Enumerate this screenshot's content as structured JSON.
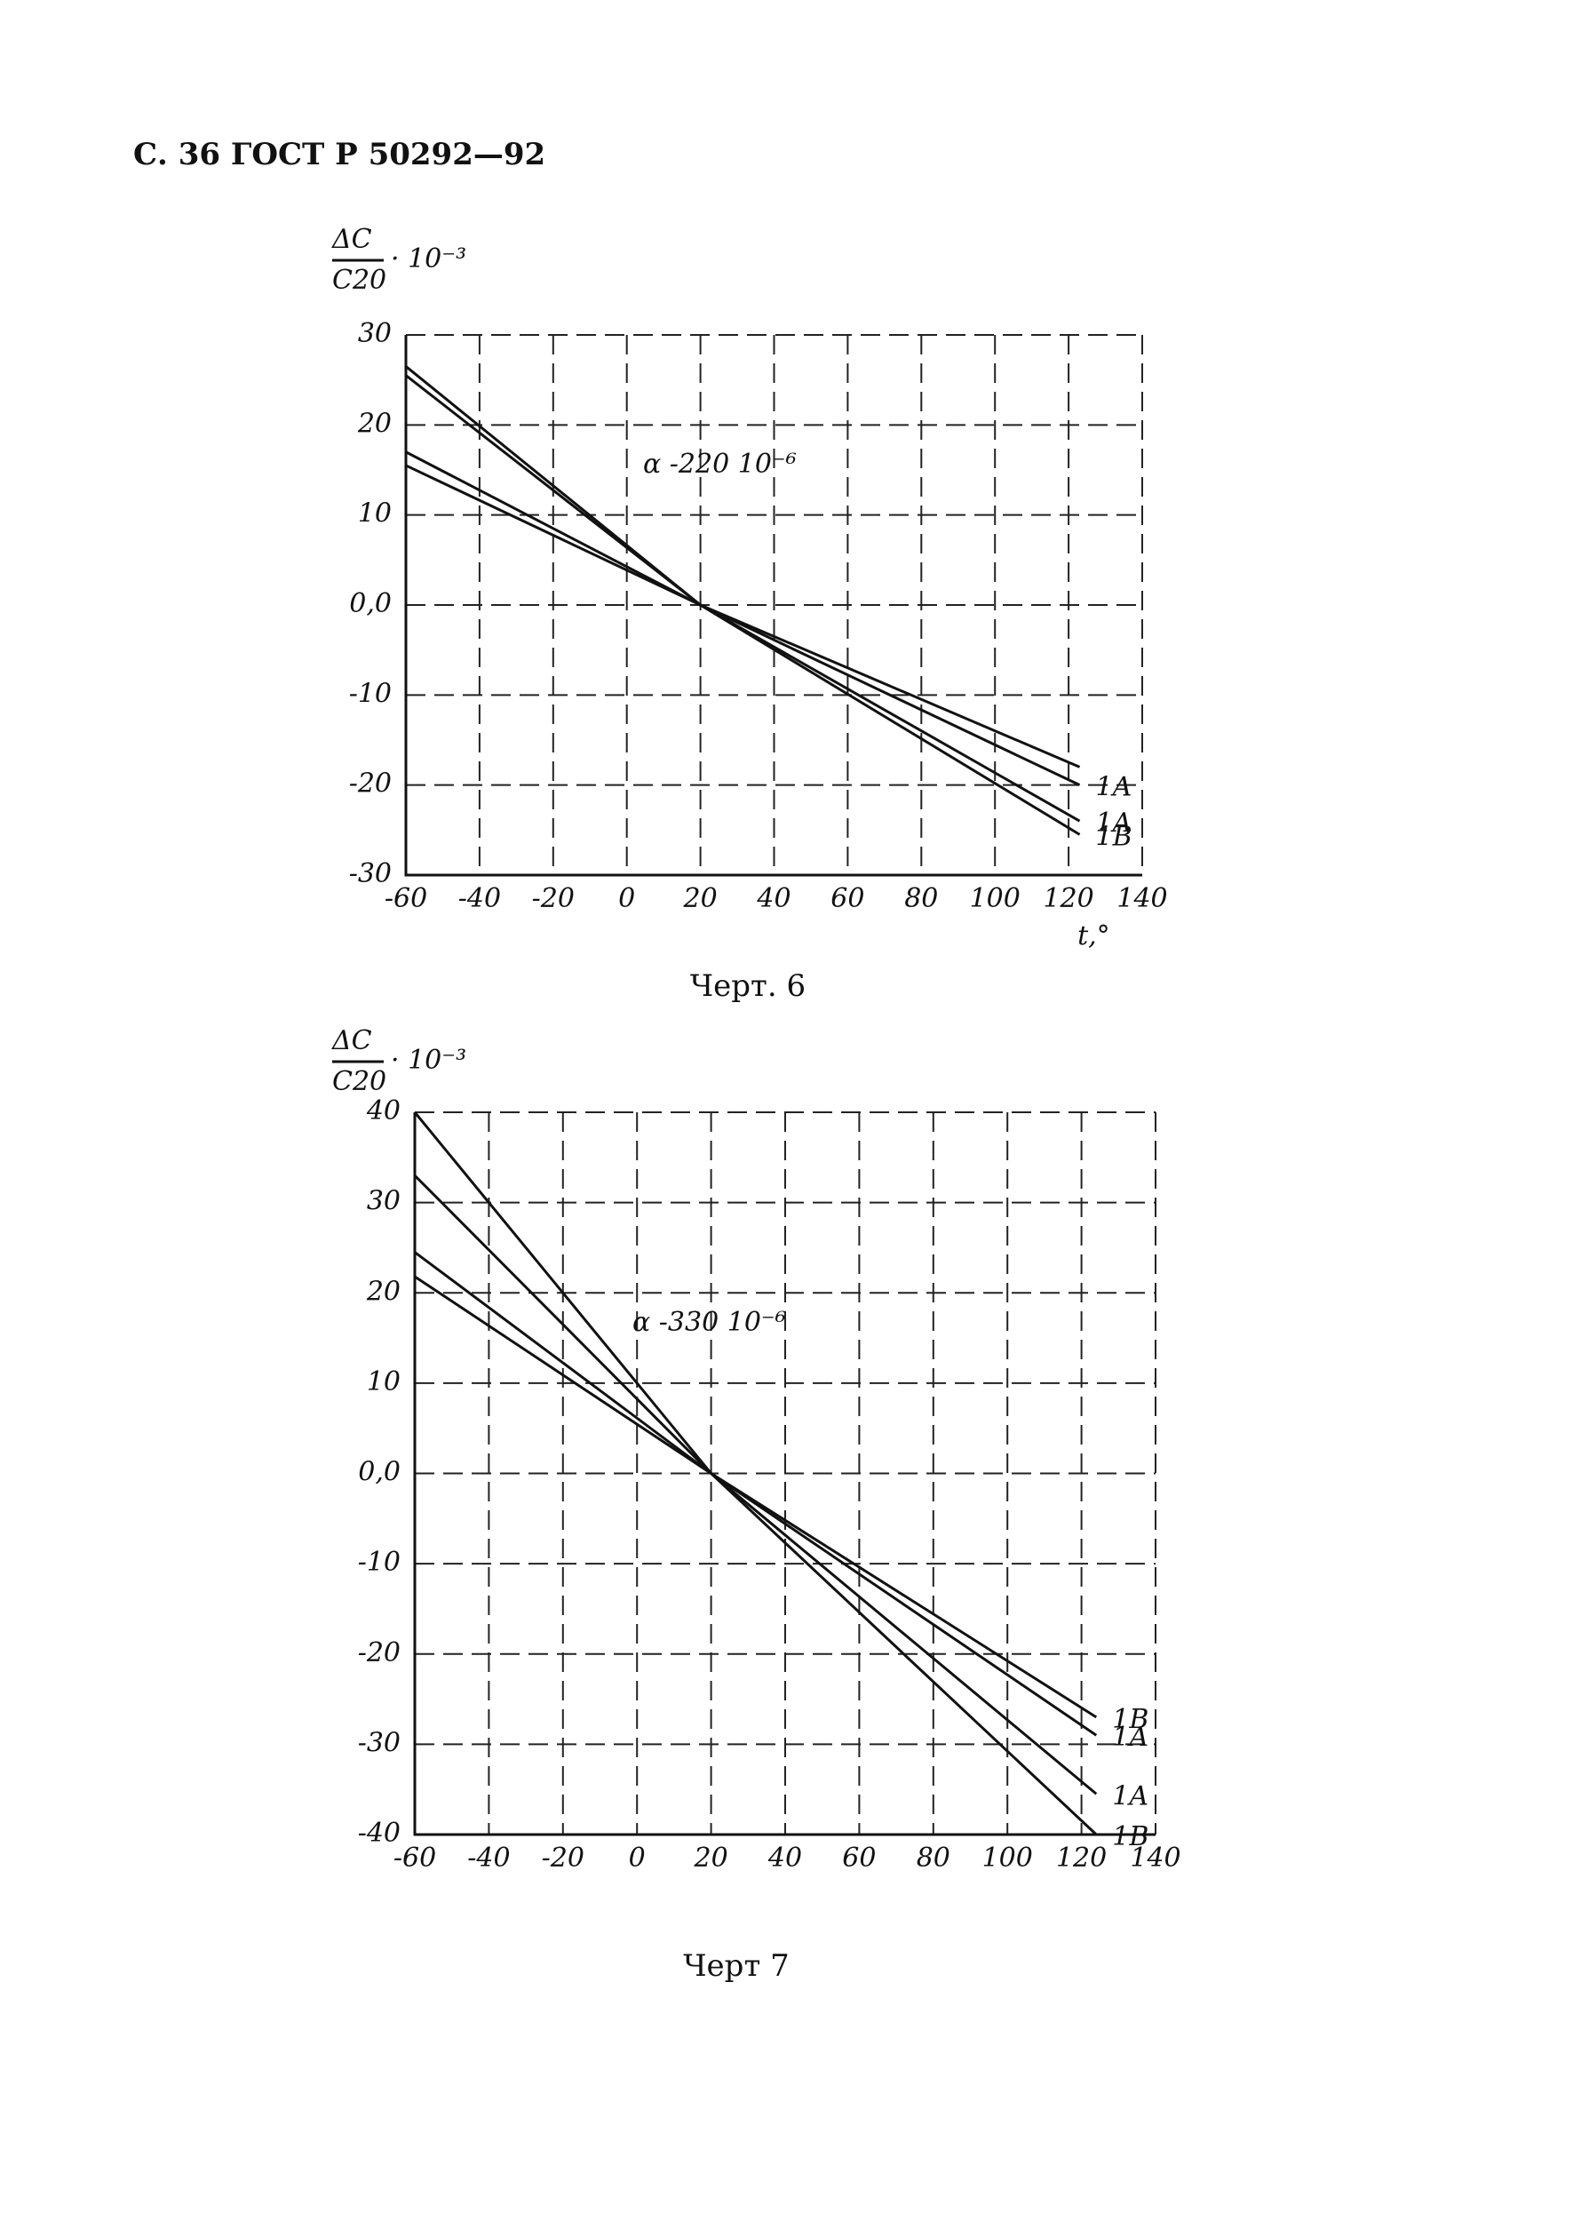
{
  "header": "С. 36 ГОСТ Р 50292—92",
  "chart_data": [
    {
      "type": "line",
      "ylabel": {
        "numerator": "ΔC",
        "denominator": "C20",
        "factor": "· 10⁻³"
      },
      "xlabel": "t,°",
      "annotation": "α -220 10⁻⁶",
      "caption": "Черт. 6",
      "x": [
        -60,
        20,
        123
      ],
      "series": [
        {
          "name": "1B",
          "color": "#111111",
          "values": [
            26.5,
            0,
            -25.5
          ]
        },
        {
          "name": "1A",
          "color": "#111111",
          "values": [
            25.5,
            0,
            -24
          ]
        },
        {
          "name": "1A",
          "color": "#111111",
          "values": [
            17,
            0,
            -20
          ]
        },
        {
          "color": "#111111",
          "values": [
            15.5,
            0,
            -18
          ]
        }
      ],
      "xlim": [
        -60,
        140
      ],
      "xticks": [
        -60,
        -40,
        -20,
        0,
        20,
        40,
        60,
        80,
        100,
        120,
        140
      ],
      "ylim": [
        -30,
        30
      ],
      "yticks": [
        -30,
        -20,
        -10,
        {
          "value": 0,
          "label": "0,0"
        },
        10,
        20,
        30
      ],
      "grid": true
    },
    {
      "type": "line",
      "ylabel": {
        "numerator": "ΔC",
        "denominator": "C20",
        "factor": "· 10⁻³"
      },
      "annotation": "α -330 10⁻⁶",
      "caption": "Черт 7",
      "x": [
        -60,
        20,
        124
      ],
      "series": [
        {
          "name": "1B",
          "color": "#111111",
          "values": [
            40,
            0,
            -40
          ]
        },
        {
          "name": "1A",
          "color": "#111111",
          "values": [
            33,
            0,
            -35.5
          ]
        },
        {
          "name": "1A",
          "color": "#111111",
          "values": [
            24.5,
            0,
            -29
          ]
        },
        {
          "name": "1B",
          "color": "#111111",
          "values": [
            21.8,
            0,
            -27
          ]
        }
      ],
      "xlim": [
        -60,
        140
      ],
      "xticks": [
        -60,
        -40,
        -20,
        0,
        20,
        40,
        60,
        80,
        100,
        120,
        140
      ],
      "ylim": [
        -40,
        40
      ],
      "yticks": [
        -40,
        -30,
        -20,
        -10,
        {
          "value": 0,
          "label": "0,0"
        },
        10,
        20,
        30,
        40
      ],
      "grid": true
    }
  ]
}
